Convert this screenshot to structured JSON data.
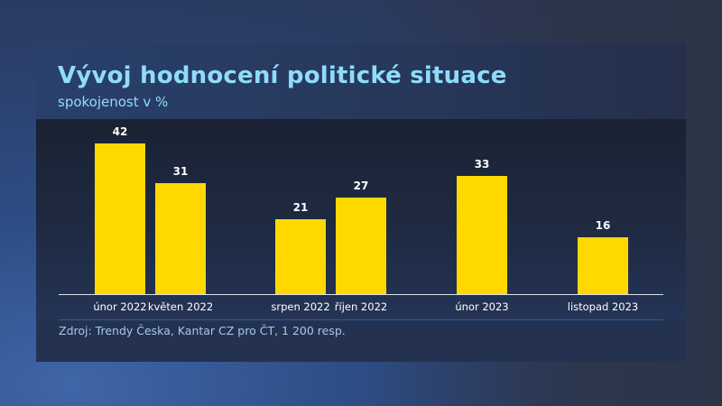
{
  "header": {
    "title": "Vývoj hodnocení politické situace",
    "subtitle": "spokojenost v %"
  },
  "footer": {
    "source": "Zdroj: Trendy Česka, Kantar CZ pro ČT, 1 200 resp."
  },
  "colors": {
    "bar": "#ffd800",
    "title": "#8fdcfb",
    "value_label": "#ffffff"
  },
  "bars": [
    {
      "label": "únor 2022",
      "value": "42"
    },
    {
      "label": "květen 2022",
      "value": "31"
    },
    {
      "label": "srpen 2022",
      "value": "21"
    },
    {
      "label": "říjen 2022",
      "value": "27"
    },
    {
      "label": "únor 2023",
      "value": "33"
    },
    {
      "label": "listopad 2023",
      "value": "16"
    }
  ],
  "chart_data": {
    "type": "bar",
    "title": "Vývoj hodnocení politické situace",
    "subtitle": "spokojenost v %",
    "categories": [
      "únor 2022",
      "květen 2022",
      "srpen 2022",
      "říjen 2022",
      "únor 2023",
      "listopad 2023"
    ],
    "values": [
      42,
      31,
      21,
      27,
      33,
      16
    ],
    "xlabel": "",
    "ylabel": "spokojenost v %",
    "ylim": [
      0,
      45
    ],
    "grid": false,
    "legend": null,
    "data_labels": true,
    "annotations": [
      "Zdroj: Trendy Česka, Kantar CZ pro ČT, 1 200 resp."
    ]
  }
}
